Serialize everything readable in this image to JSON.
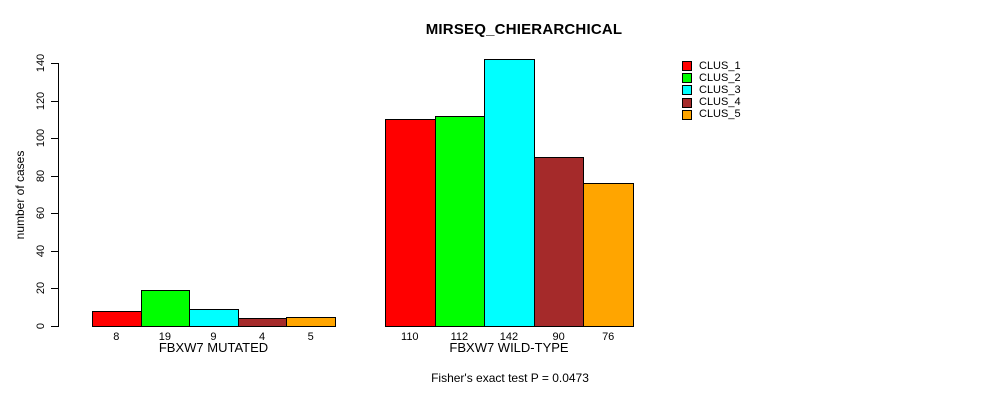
{
  "chart_data": {
    "type": "bar",
    "title": "MIRSEQ_CHIERARCHICAL",
    "ylabel": "number of cases",
    "xlabel": "",
    "subtitle": "Fisher's exact test P = 0.0473",
    "ylim": [
      0,
      140
    ],
    "yticks": [
      0,
      20,
      40,
      60,
      80,
      100,
      120,
      140
    ],
    "grid": false,
    "legend_position": "top-right",
    "categories": [
      "FBXW7 MUTATED",
      "FBXW7 WILD-TYPE"
    ],
    "groups": [
      {
        "label": "FBXW7 MUTATED",
        "values": [
          8,
          19,
          9,
          4,
          5
        ]
      },
      {
        "label": "FBXW7 WILD-TYPE",
        "values": [
          110,
          112,
          142,
          90,
          76
        ]
      }
    ],
    "series": [
      {
        "name": "CLUS_1",
        "color": "#ff0000"
      },
      {
        "name": "CLUS_2",
        "color": "#00ff00"
      },
      {
        "name": "CLUS_3",
        "color": "#00ffff"
      },
      {
        "name": "CLUS_4",
        "color": "#a52a2a"
      },
      {
        "name": "CLUS_5",
        "color": "#ffa500"
      }
    ],
    "bar_value_labels": [
      [
        "8",
        "19",
        "9",
        "4",
        "5"
      ],
      [
        "110",
        "112",
        "142",
        "90",
        "76"
      ]
    ]
  }
}
